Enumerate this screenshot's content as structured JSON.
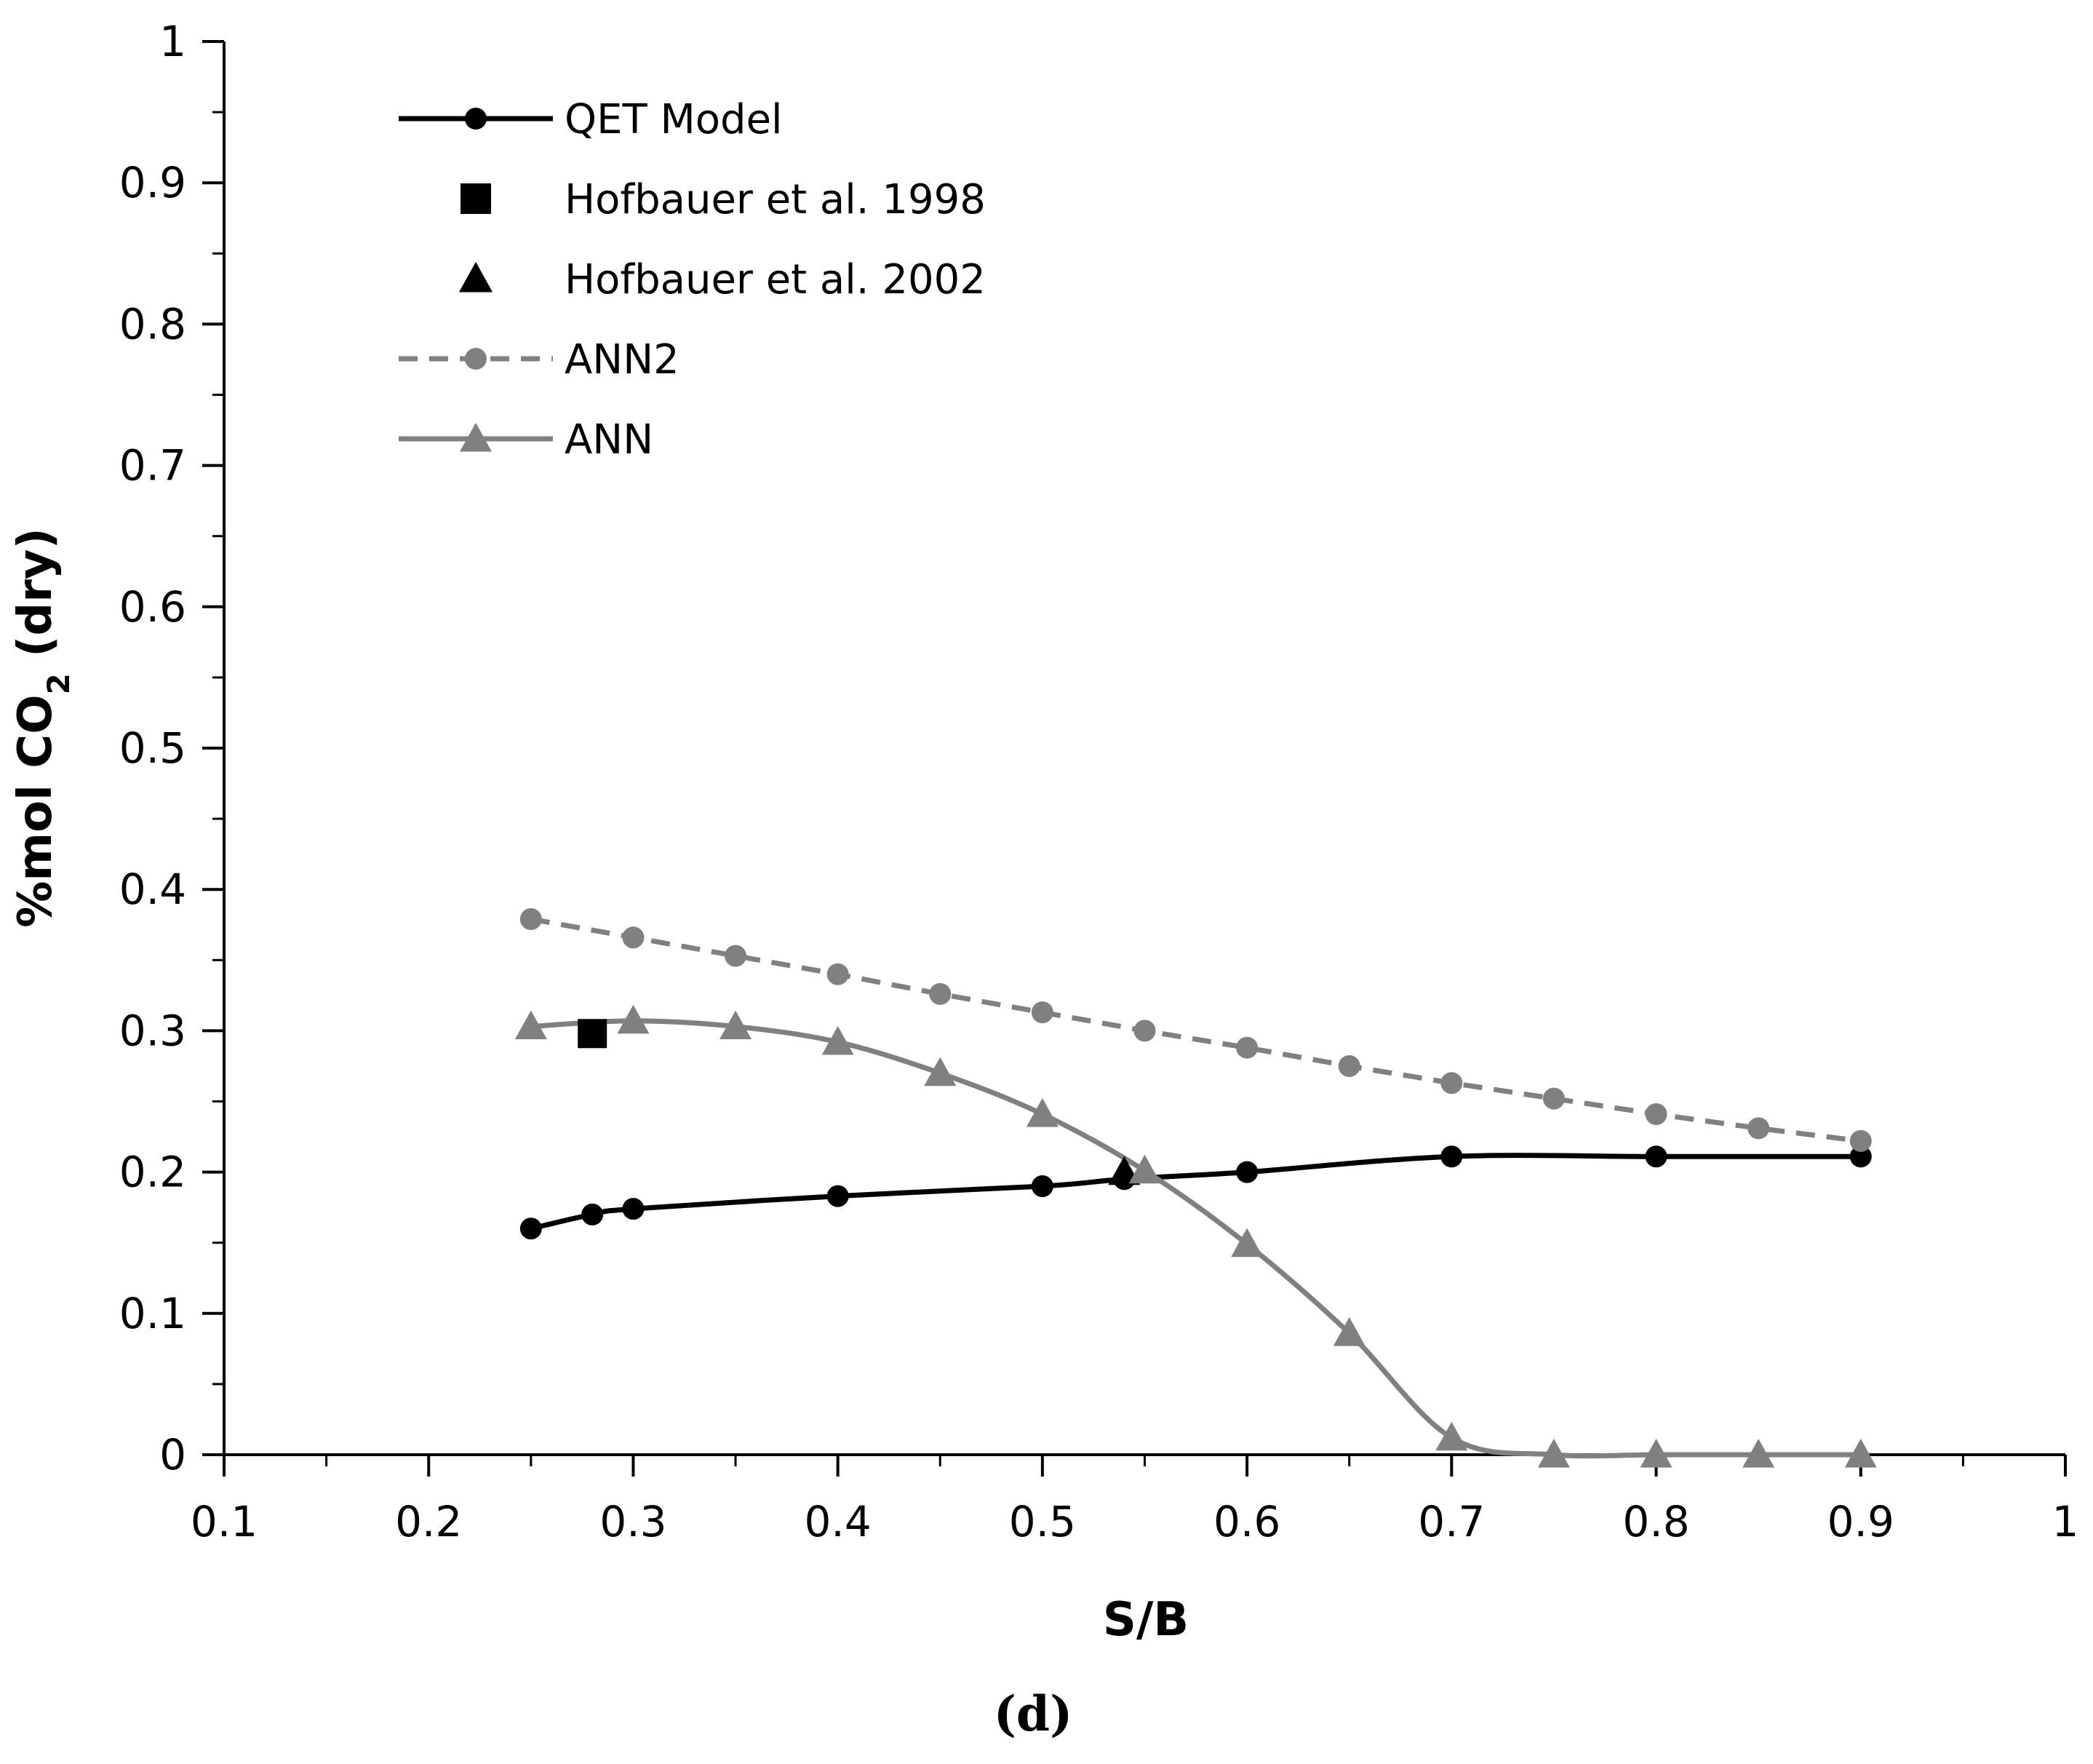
{
  "chart_data": {
    "type": "line",
    "title": "",
    "panel_label": "(d)",
    "xlabel": "S/B",
    "ylabel": {
      "prefix": "%mol CO",
      "subscript": "2",
      "suffix": " (dry)"
    },
    "xlim": [
      0.1,
      1
    ],
    "ylim": [
      0,
      1
    ],
    "x_ticks": [
      0.1,
      0.2,
      0.3,
      0.4,
      0.5,
      0.6,
      0.7,
      0.8,
      0.9,
      1
    ],
    "x_tick_labels": [
      "0.1",
      "0.2",
      "0.3",
      "0.4",
      "0.5",
      "0.6",
      "0.7",
      "0.8",
      "0.9",
      "1"
    ],
    "y_ticks": [
      0,
      0.1,
      0.2,
      0.3,
      0.4,
      0.5,
      0.6,
      0.7,
      0.8,
      0.9,
      1
    ],
    "y_tick_labels": [
      "0",
      "0.1",
      "0.2",
      "0.3",
      "0.4",
      "0.5",
      "0.6",
      "0.7",
      "0.8",
      "0.9",
      "1"
    ],
    "grid": false,
    "legend_position": "top-left",
    "series": [
      {
        "name": "QET Model",
        "color": "#000000",
        "line": "solid",
        "marker": "circle",
        "smooth": true,
        "x": [
          0.25,
          0.28,
          0.3,
          0.4,
          0.5,
          0.54,
          0.6,
          0.7,
          0.8,
          0.9
        ],
        "y": [
          0.16,
          0.17,
          0.174,
          0.183,
          0.19,
          0.195,
          0.2,
          0.211,
          0.211,
          0.211
        ]
      },
      {
        "name": "Hofbauer et al. 1998",
        "color": "#000000",
        "line": "none",
        "marker": "square",
        "x": [
          0.28
        ],
        "y": [
          0.298
        ]
      },
      {
        "name": "Hofbauer et al. 2002",
        "color": "#000000",
        "line": "none",
        "marker": "triangle",
        "x": [
          0.54
        ],
        "y": [
          0.2
        ]
      },
      {
        "name": "ANN2",
        "color": "#808080",
        "line": "dashed",
        "marker": "circle",
        "smooth": false,
        "x": [
          0.25,
          0.3,
          0.35,
          0.4,
          0.45,
          0.5,
          0.55,
          0.6,
          0.65,
          0.7,
          0.75,
          0.8,
          0.85,
          0.9
        ],
        "y": [
          0.379,
          0.366,
          0.353,
          0.34,
          0.326,
          0.313,
          0.3,
          0.288,
          0.275,
          0.263,
          0.252,
          0.241,
          0.231,
          0.222
        ]
      },
      {
        "name": "ANN",
        "color": "#808080",
        "line": "solid",
        "marker": "triangle",
        "smooth": true,
        "x": [
          0.25,
          0.3,
          0.35,
          0.4,
          0.45,
          0.5,
          0.55,
          0.6,
          0.65,
          0.7,
          0.75,
          0.8,
          0.85,
          0.9
        ],
        "y": [
          0.303,
          0.307,
          0.303,
          0.292,
          0.27,
          0.241,
          0.201,
          0.149,
          0.086,
          0.012,
          0.0,
          0.0,
          0.0,
          0.0
        ]
      }
    ]
  }
}
